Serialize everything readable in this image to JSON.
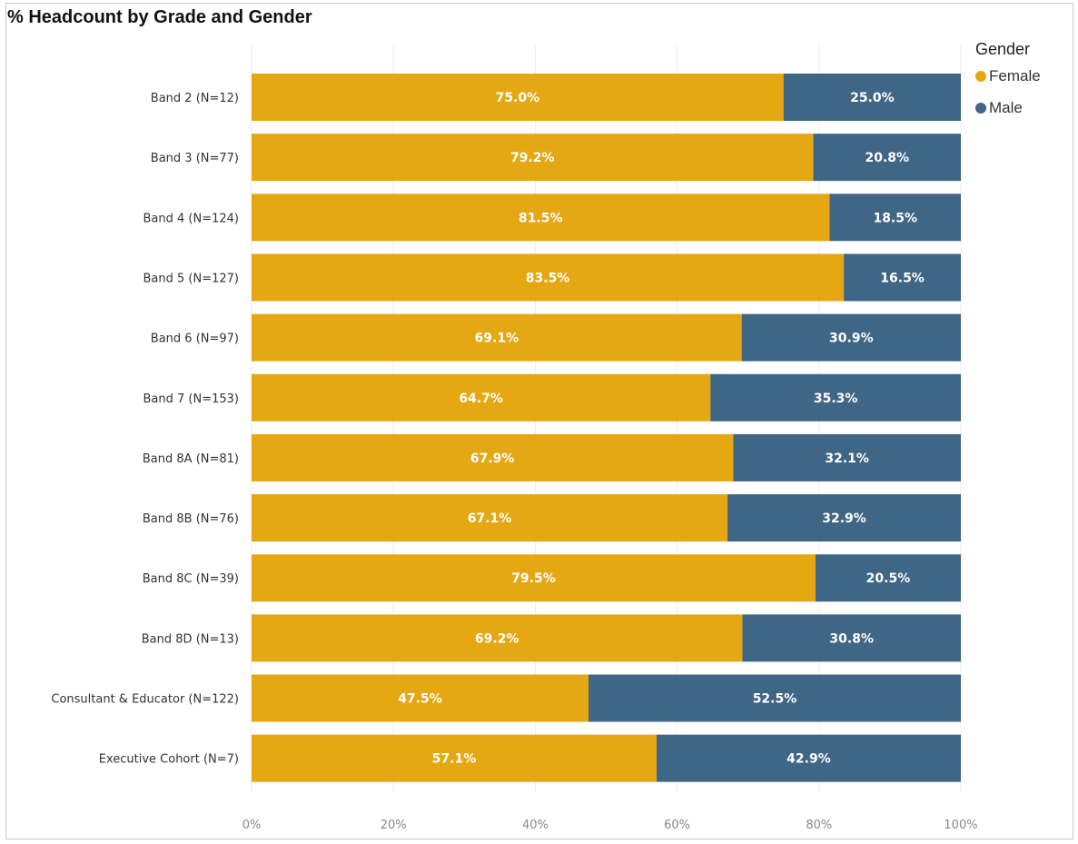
{
  "chart_data": {
    "type": "bar",
    "orientation": "horizontal",
    "stacked": "percent",
    "title": "% Headcount by Grade and Gender",
    "legend_title": "Gender",
    "legend_position": "top-right",
    "categories": [
      "Band 2 (N=12)",
      "Band 3 (N=77)",
      "Band 4 (N=124)",
      "Band 5 (N=127)",
      "Band 6 (N=97)",
      "Band 7 (N=153)",
      "Band 8A (N=81)",
      "Band 8B (N=76)",
      "Band 8C (N=39)",
      "Band 8D (N=13)",
      "Consultant & Educator (N=122)",
      "Executive Cohort (N=7)"
    ],
    "series": [
      {
        "name": "Female",
        "color": "#E5A813",
        "values": [
          75.0,
          79.2,
          81.5,
          83.5,
          69.1,
          64.7,
          67.9,
          67.1,
          79.5,
          69.2,
          47.5,
          57.1
        ],
        "labels": [
          "75.0%",
          "79.2%",
          "81.5%",
          "83.5%",
          "69.1%",
          "64.7%",
          "67.9%",
          "67.1%",
          "79.5%",
          "69.2%",
          "47.5%",
          "57.1%"
        ]
      },
      {
        "name": "Male",
        "color": "#406686",
        "values": [
          25.0,
          20.8,
          18.5,
          16.5,
          30.9,
          35.3,
          32.1,
          32.9,
          20.5,
          30.8,
          52.5,
          42.9
        ],
        "labels": [
          "25.0%",
          "20.8%",
          "18.5%",
          "16.5%",
          "30.9%",
          "35.3%",
          "32.1%",
          "32.9%",
          "20.5%",
          "30.8%",
          "52.5%",
          "42.9%"
        ]
      }
    ],
    "xlim": [
      0,
      100
    ],
    "xticks": [
      "0%",
      "20%",
      "40%",
      "60%",
      "80%",
      "100%"
    ],
    "grid": true
  }
}
